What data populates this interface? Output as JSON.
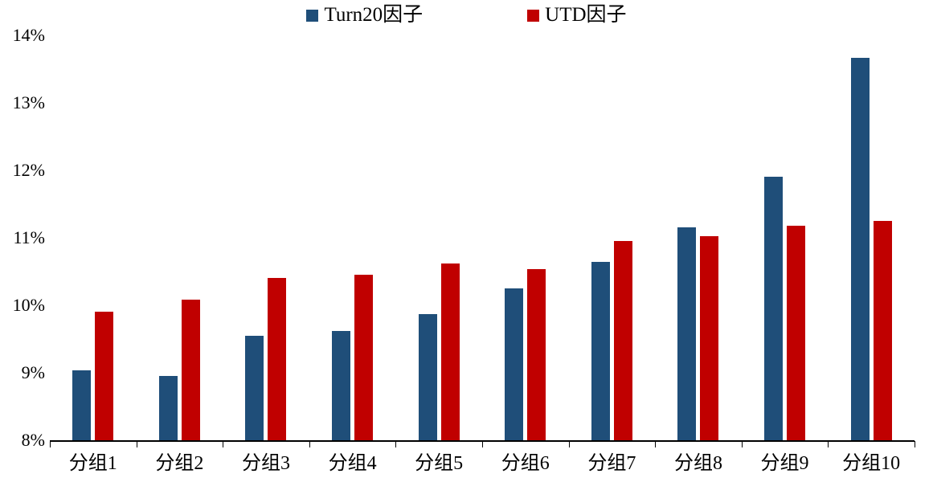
{
  "chart_data": {
    "type": "bar",
    "title": "",
    "xlabel": "",
    "ylabel": "",
    "categories": [
      "分组1",
      "分组2",
      "分组3",
      "分组4",
      "分组5",
      "分组6",
      "分组7",
      "分组8",
      "分组9",
      "分组10"
    ],
    "series": [
      {
        "name": "Turn20因子",
        "color": "#1F4E79",
        "values": [
          9.03,
          8.95,
          9.55,
          9.62,
          9.87,
          10.25,
          10.64,
          11.16,
          11.9,
          13.67
        ]
      },
      {
        "name": "UTD因子",
        "color": "#C00000",
        "values": [
          9.91,
          10.08,
          10.4,
          10.45,
          10.62,
          10.54,
          10.95,
          11.02,
          11.18,
          11.25
        ]
      }
    ],
    "ylim": [
      8,
      14
    ],
    "ytick_values": [
      8,
      9,
      10,
      11,
      12,
      13,
      14
    ],
    "yticks": [
      "8%",
      "9%",
      "10%",
      "11%",
      "12%",
      "13%",
      "14%"
    ],
    "grid": false,
    "legend_position": "top-center"
  },
  "colors": {
    "background": "#FFFFFF",
    "axis": "#000000",
    "text": "#000000",
    "series_turn20": "#1F4E79",
    "series_utd": "#C00000"
  }
}
